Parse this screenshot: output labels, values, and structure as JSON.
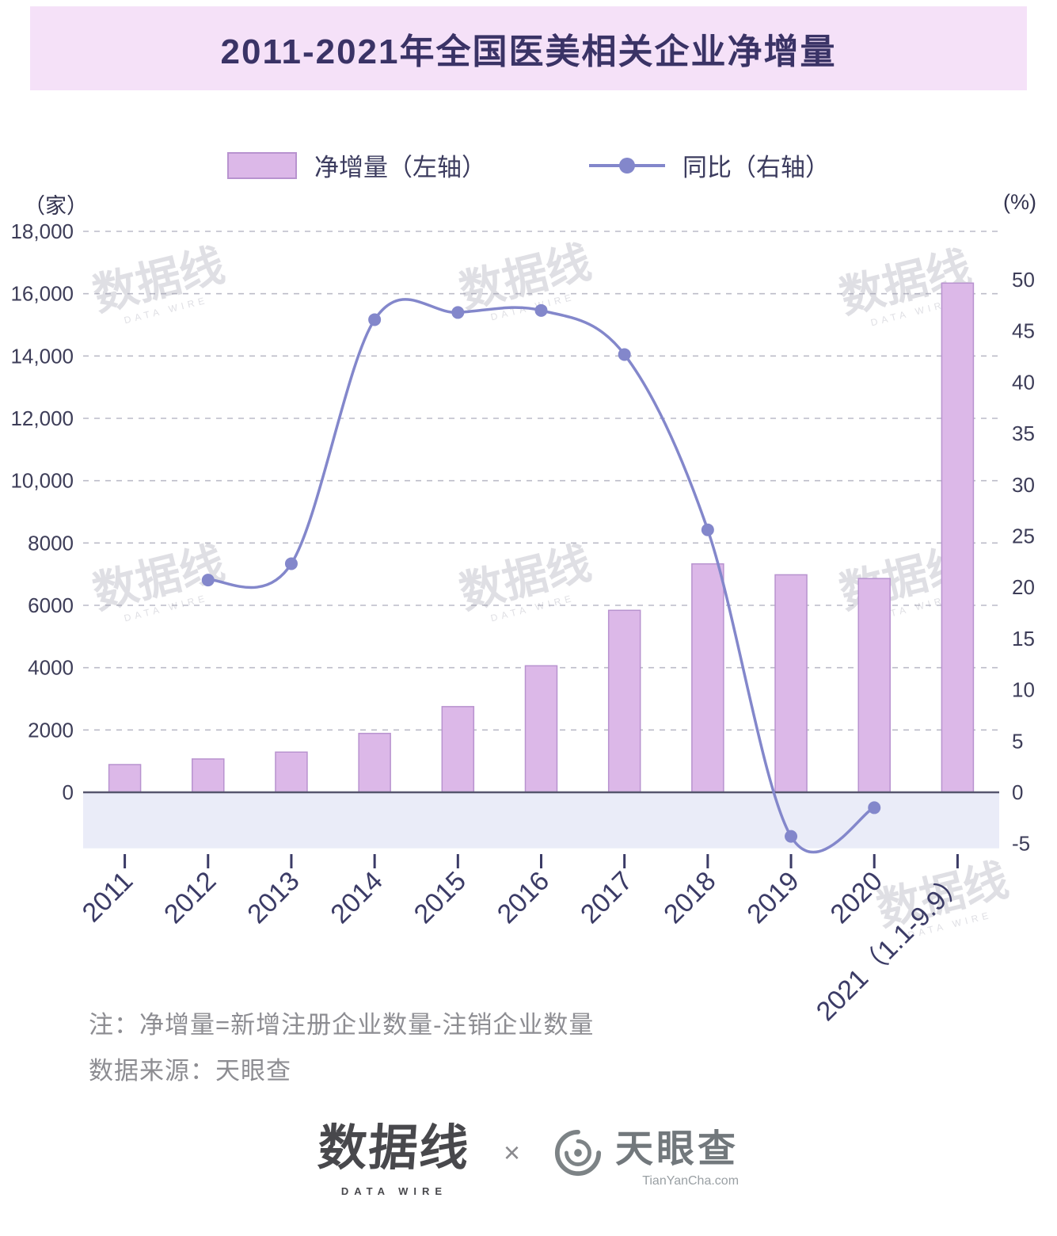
{
  "title": "2011-2021年全国医美相关企业净增量",
  "legend": {
    "bars": "净增量（左轴）",
    "line": "同比（右轴）"
  },
  "axis_units": {
    "left": "（家）",
    "right": "(%)"
  },
  "chart_data": {
    "type": "bar+line",
    "categories": [
      "2011",
      "2012",
      "2013",
      "2014",
      "2015",
      "2016",
      "2017",
      "2018",
      "2019",
      "2020",
      "2021（1.1-9.9）"
    ],
    "series": [
      {
        "name": "净增量（左轴）",
        "type": "bar",
        "axis": "left",
        "values": [
          890,
          1070,
          1290,
          1890,
          2750,
          4060,
          5840,
          7330,
          6980,
          6860,
          16340
        ]
      },
      {
        "name": "同比（右轴）",
        "type": "line",
        "axis": "right",
        "values": [
          null,
          20.7,
          22.3,
          46.1,
          46.8,
          47.0,
          42.7,
          25.6,
          -4.3,
          -1.5,
          null
        ]
      }
    ],
    "left_axis": {
      "label": "（家）",
      "min": 0,
      "max": 18000,
      "tick_values": [
        0,
        2000,
        4000,
        6000,
        8000,
        10000,
        12000,
        14000,
        16000,
        18000
      ],
      "tick_labels": [
        "0",
        "2000",
        "4000",
        "6000",
        "8000",
        "10,000",
        "12,000",
        "14,000",
        "16,000",
        "18,000"
      ]
    },
    "right_axis": {
      "label": "(%)",
      "min": -5,
      "max": 50,
      "tick_values": [
        50,
        45,
        40,
        35,
        30,
        25,
        20,
        15,
        10,
        5,
        0,
        -5
      ],
      "tick_labels": [
        "50",
        "45",
        "40",
        "35",
        "30",
        "25",
        "20",
        "15",
        "10",
        "5",
        "0",
        "-5"
      ]
    },
    "grid": "dashed horizontal",
    "legend_position": "top"
  },
  "notes": [
    "注：净增量=新增注册企业数量-注销企业数量",
    "数据来源：天眼查"
  ],
  "watermark": {
    "text": "数据线",
    "sub": "DATA WIRE"
  },
  "footer": {
    "datawire_name": "数据线",
    "datawire_sub": "DATA WIRE",
    "times": "×",
    "tianyancha_name": "天眼查",
    "tianyancha_url": "TianYanCha.com"
  },
  "colors": {
    "banner_bg": "#f5e1f8",
    "title": "#3a3366",
    "bar_fill": "#dcb8e8",
    "bar_stroke": "#b893cf",
    "line": "#8387cb",
    "grid": "#bcbcc8",
    "axis_text": "#3d3d58",
    "xlabel": "#3b3b66",
    "baseline": "#56566e",
    "band": "#eaecf8",
    "note": "#8d8d92",
    "watermark": "#9f9fae"
  }
}
